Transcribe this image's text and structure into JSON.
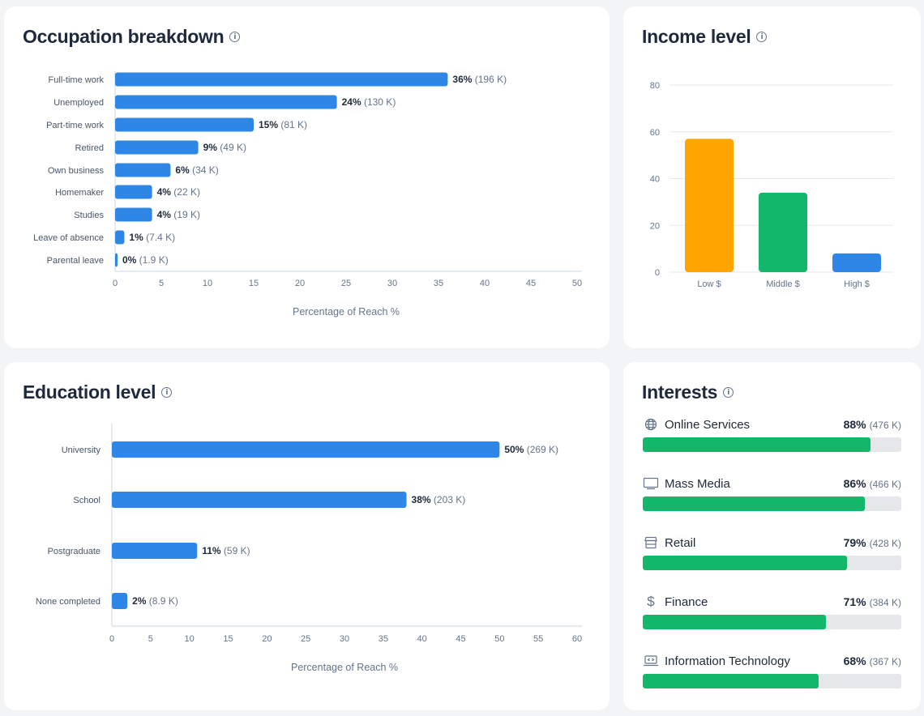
{
  "colors": {
    "bar": "#2e86e6",
    "green": "#12b76a",
    "orange": "#ffa500",
    "track": "#e5e7eb"
  },
  "chart_data": [
    {
      "type": "bar",
      "orientation": "horizontal",
      "title": "Occupation breakdown",
      "categories": [
        "Full-time work",
        "Unemployed",
        "Part-time work",
        "Retired",
        "Own business",
        "Homemaker",
        "Studies",
        "Leave of absence",
        "Parental leave"
      ],
      "values": [
        36,
        24,
        15,
        9,
        6,
        4,
        4,
        1,
        0
      ],
      "labels": [
        "36%",
        "24%",
        "15%",
        "9%",
        "6%",
        "4%",
        "4%",
        "1%",
        "0%"
      ],
      "counts": [
        "(196 K)",
        "(130 K)",
        "(81 K)",
        "(49 K)",
        "(34 K)",
        "(22 K)",
        "(19 K)",
        "(7.4 K)",
        "(1.9 K)"
      ],
      "xlabel": "Percentage of Reach %",
      "xlim": [
        0,
        50
      ],
      "xticks": [
        "0",
        "5",
        "10",
        "15",
        "20",
        "25",
        "30",
        "35",
        "40",
        "45",
        "50"
      ]
    },
    {
      "type": "bar",
      "title": "Income level",
      "categories": [
        "Low $",
        "Middle $",
        "High $"
      ],
      "values": [
        57,
        34,
        8
      ],
      "bar_colors": [
        "#ffa500",
        "#12b76a",
        "#2e86e6"
      ],
      "ylim": [
        0,
        80
      ],
      "yticks": [
        "0",
        "20",
        "40",
        "60",
        "80"
      ],
      "grid": true
    },
    {
      "type": "bar",
      "orientation": "horizontal",
      "title": "Education level",
      "categories": [
        "University",
        "School",
        "Postgraduate",
        "None completed"
      ],
      "values": [
        50,
        38,
        11,
        2
      ],
      "labels": [
        "50%",
        "38%",
        "11%",
        "2%"
      ],
      "counts": [
        "(269 K)",
        "(203 K)",
        "(59 K)",
        "(8.9 K)"
      ],
      "xlabel": "Percentage of Reach %",
      "xlim": [
        0,
        60
      ],
      "xticks": [
        "0",
        "5",
        "10",
        "15",
        "20",
        "25",
        "30",
        "35",
        "40",
        "45",
        "50",
        "55",
        "60"
      ]
    }
  ],
  "interests": {
    "title": "Interests",
    "items": [
      {
        "label": "Online Services",
        "icon": "globe-icon",
        "value": 88,
        "pct": "88%",
        "count": "(476 K)"
      },
      {
        "label": "Mass Media",
        "icon": "monitor-icon",
        "value": 86,
        "pct": "86%",
        "count": "(466 K)"
      },
      {
        "label": "Retail",
        "icon": "store-icon",
        "value": 79,
        "pct": "79%",
        "count": "(428 K)"
      },
      {
        "label": "Finance",
        "icon": "dollar-icon",
        "value": 71,
        "pct": "71%",
        "count": "(384 K)"
      },
      {
        "label": "Information Technology",
        "icon": "laptop-code-icon",
        "value": 68,
        "pct": "68%",
        "count": "(367 K)"
      }
    ]
  },
  "info_glyph": "i"
}
